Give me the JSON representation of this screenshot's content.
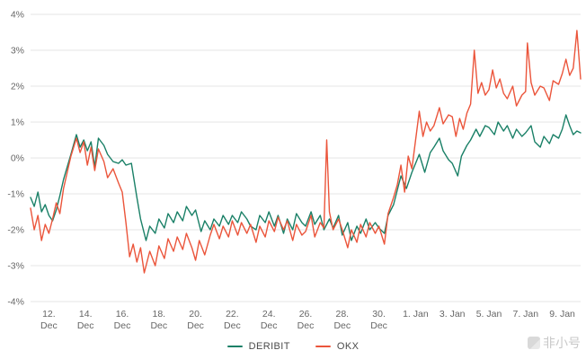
{
  "colors": {
    "background": "#ffffff",
    "grid": "#e6e6e6",
    "axis_text": "#666666",
    "deribit": "#1a8067",
    "okx": "#eb553b"
  },
  "legend": {
    "items": [
      {
        "label": "DERIBIT",
        "color": "#1a8067"
      },
      {
        "label": "OKX",
        "color": "#eb553b"
      }
    ]
  },
  "watermark": "非小号",
  "chart_data": {
    "type": "line",
    "title": "",
    "xlabel": "",
    "ylabel": "",
    "ylim": [
      -4,
      4
    ],
    "x_domain": [
      0,
      30
    ],
    "grid": "horizontal-only",
    "legend_position": "bottom-center",
    "y_ticks": [
      {
        "value": 4,
        "label": "4%"
      },
      {
        "value": 3,
        "label": "3%"
      },
      {
        "value": 2,
        "label": "2%"
      },
      {
        "value": 1,
        "label": "1%"
      },
      {
        "value": 0,
        "label": "0%"
      },
      {
        "value": -1,
        "label": "-1%"
      },
      {
        "value": -2,
        "label": "-2%"
      },
      {
        "value": -3,
        "label": "-3%"
      },
      {
        "value": -4,
        "label": "-4%"
      }
    ],
    "x_ticks": [
      {
        "pos": 1,
        "lines": [
          "12.",
          "Dec"
        ]
      },
      {
        "pos": 3,
        "lines": [
          "14.",
          "Dec"
        ]
      },
      {
        "pos": 5,
        "lines": [
          "16.",
          "Dec"
        ]
      },
      {
        "pos": 7,
        "lines": [
          "18.",
          "Dec"
        ]
      },
      {
        "pos": 9,
        "lines": [
          "20.",
          "Dec"
        ]
      },
      {
        "pos": 11,
        "lines": [
          "22.",
          "Dec"
        ]
      },
      {
        "pos": 13,
        "lines": [
          "24.",
          "Dec"
        ]
      },
      {
        "pos": 15,
        "lines": [
          "26.",
          "Dec"
        ]
      },
      {
        "pos": 17,
        "lines": [
          "28.",
          "Dec"
        ]
      },
      {
        "pos": 19,
        "lines": [
          "30.",
          "Dec"
        ]
      },
      {
        "pos": 21,
        "lines": [
          "1. Jan"
        ]
      },
      {
        "pos": 23,
        "lines": [
          "3. Jan"
        ]
      },
      {
        "pos": 25,
        "lines": [
          "5. Jan"
        ]
      },
      {
        "pos": 27,
        "lines": [
          "7. Jan"
        ]
      },
      {
        "pos": 29,
        "lines": [
          "9. Jan"
        ]
      }
    ],
    "series": [
      {
        "name": "DERIBIT",
        "color": "#1a8067",
        "points": [
          [
            0,
            -1.1
          ],
          [
            0.2,
            -1.35
          ],
          [
            0.4,
            -0.95
          ],
          [
            0.6,
            -1.5
          ],
          [
            0.8,
            -1.3
          ],
          [
            1,
            -1.6
          ],
          [
            1.2,
            -1.75
          ],
          [
            1.4,
            -1.45
          ],
          [
            1.6,
            -1.05
          ],
          [
            1.8,
            -0.6
          ],
          [
            2,
            -0.25
          ],
          [
            2.2,
            0.1
          ],
          [
            2.5,
            0.65
          ],
          [
            2.7,
            0.3
          ],
          [
            2.9,
            0.5
          ],
          [
            3.1,
            0.2
          ],
          [
            3.3,
            0.45
          ],
          [
            3.5,
            -0.25
          ],
          [
            3.7,
            0.55
          ],
          [
            4,
            0.35
          ],
          [
            4.2,
            0.1
          ],
          [
            4.5,
            -0.1
          ],
          [
            4.8,
            -0.15
          ],
          [
            5,
            -0.05
          ],
          [
            5.2,
            -0.2
          ],
          [
            5.5,
            -0.15
          ],
          [
            5.8,
            -1.1
          ],
          [
            6,
            -1.7
          ],
          [
            6.3,
            -2.3
          ],
          [
            6.5,
            -1.9
          ],
          [
            6.8,
            -2.1
          ],
          [
            7,
            -1.7
          ],
          [
            7.3,
            -1.95
          ],
          [
            7.5,
            -1.55
          ],
          [
            7.8,
            -1.8
          ],
          [
            8,
            -1.5
          ],
          [
            8.3,
            -1.75
          ],
          [
            8.5,
            -1.35
          ],
          [
            8.8,
            -1.6
          ],
          [
            9,
            -1.45
          ],
          [
            9.3,
            -2.05
          ],
          [
            9.5,
            -1.75
          ],
          [
            9.8,
            -2.0
          ],
          [
            10,
            -1.7
          ],
          [
            10.3,
            -1.9
          ],
          [
            10.5,
            -1.6
          ],
          [
            10.8,
            -1.85
          ],
          [
            11,
            -1.6
          ],
          [
            11.3,
            -1.8
          ],
          [
            11.5,
            -1.5
          ],
          [
            11.8,
            -1.7
          ],
          [
            12,
            -1.9
          ],
          [
            12.3,
            -2.0
          ],
          [
            12.5,
            -1.6
          ],
          [
            12.8,
            -1.8
          ],
          [
            13,
            -1.5
          ],
          [
            13.3,
            -1.9
          ],
          [
            13.5,
            -1.6
          ],
          [
            13.8,
            -2.1
          ],
          [
            14,
            -1.7
          ],
          [
            14.3,
            -2.0
          ],
          [
            14.5,
            -1.55
          ],
          [
            14.8,
            -1.8
          ],
          [
            15,
            -1.9
          ],
          [
            15.3,
            -1.5
          ],
          [
            15.5,
            -1.85
          ],
          [
            15.8,
            -1.6
          ],
          [
            16,
            -2.0
          ],
          [
            16.3,
            -1.7
          ],
          [
            16.5,
            -1.95
          ],
          [
            16.8,
            -1.6
          ],
          [
            17,
            -2.15
          ],
          [
            17.3,
            -1.8
          ],
          [
            17.5,
            -2.3
          ],
          [
            17.8,
            -1.9
          ],
          [
            18,
            -2.1
          ],
          [
            18.3,
            -1.7
          ],
          [
            18.5,
            -2.0
          ],
          [
            18.8,
            -1.8
          ],
          [
            19,
            -1.95
          ],
          [
            19.3,
            -2.1
          ],
          [
            19.5,
            -1.6
          ],
          [
            19.8,
            -1.3
          ],
          [
            20,
            -0.9
          ],
          [
            20.2,
            -0.5
          ],
          [
            20.5,
            -0.85
          ],
          [
            20.8,
            -0.4
          ],
          [
            21,
            -0.15
          ],
          [
            21.2,
            0.1
          ],
          [
            21.5,
            -0.4
          ],
          [
            21.8,
            0.15
          ],
          [
            22,
            0.3
          ],
          [
            22.3,
            0.55
          ],
          [
            22.5,
            0.2
          ],
          [
            22.8,
            -0.05
          ],
          [
            23,
            -0.15
          ],
          [
            23.3,
            -0.5
          ],
          [
            23.5,
            0.05
          ],
          [
            23.8,
            0.35
          ],
          [
            24,
            0.5
          ],
          [
            24.3,
            0.8
          ],
          [
            24.5,
            0.6
          ],
          [
            24.8,
            0.9
          ],
          [
            25,
            0.85
          ],
          [
            25.3,
            0.65
          ],
          [
            25.5,
            1.0
          ],
          [
            25.8,
            0.75
          ],
          [
            26,
            0.9
          ],
          [
            26.3,
            0.55
          ],
          [
            26.5,
            0.8
          ],
          [
            26.8,
            0.6
          ],
          [
            27,
            0.7
          ],
          [
            27.3,
            0.9
          ],
          [
            27.5,
            0.45
          ],
          [
            27.8,
            0.3
          ],
          [
            28,
            0.6
          ],
          [
            28.3,
            0.4
          ],
          [
            28.5,
            0.65
          ],
          [
            28.8,
            0.55
          ],
          [
            29,
            0.8
          ],
          [
            29.2,
            1.2
          ],
          [
            29.4,
            0.9
          ],
          [
            29.6,
            0.65
          ],
          [
            29.8,
            0.75
          ],
          [
            30,
            0.7
          ]
        ]
      },
      {
        "name": "OKX",
        "color": "#eb553b",
        "points": [
          [
            0,
            -1.4
          ],
          [
            0.2,
            -2.0
          ],
          [
            0.4,
            -1.6
          ],
          [
            0.6,
            -2.3
          ],
          [
            0.8,
            -1.85
          ],
          [
            1,
            -2.1
          ],
          [
            1.2,
            -1.7
          ],
          [
            1.4,
            -1.25
          ],
          [
            1.6,
            -1.55
          ],
          [
            1.8,
            -0.85
          ],
          [
            2,
            -0.4
          ],
          [
            2.2,
            0.05
          ],
          [
            2.5,
            0.55
          ],
          [
            2.7,
            0.15
          ],
          [
            2.9,
            0.45
          ],
          [
            3.1,
            -0.2
          ],
          [
            3.3,
            0.3
          ],
          [
            3.5,
            -0.35
          ],
          [
            3.7,
            0.25
          ],
          [
            4,
            -0.1
          ],
          [
            4.2,
            -0.55
          ],
          [
            4.5,
            -0.3
          ],
          [
            4.8,
            -0.7
          ],
          [
            5,
            -0.95
          ],
          [
            5.2,
            -1.8
          ],
          [
            5.4,
            -2.75
          ],
          [
            5.6,
            -2.4
          ],
          [
            5.8,
            -2.9
          ],
          [
            6,
            -2.5
          ],
          [
            6.2,
            -3.2
          ],
          [
            6.5,
            -2.6
          ],
          [
            6.8,
            -3.0
          ],
          [
            7,
            -2.45
          ],
          [
            7.3,
            -2.8
          ],
          [
            7.5,
            -2.25
          ],
          [
            7.8,
            -2.6
          ],
          [
            8,
            -2.2
          ],
          [
            8.3,
            -2.55
          ],
          [
            8.5,
            -2.1
          ],
          [
            8.8,
            -2.5
          ],
          [
            9,
            -2.85
          ],
          [
            9.2,
            -2.3
          ],
          [
            9.5,
            -2.7
          ],
          [
            9.8,
            -2.15
          ],
          [
            10,
            -1.85
          ],
          [
            10.3,
            -2.25
          ],
          [
            10.5,
            -1.9
          ],
          [
            10.8,
            -2.2
          ],
          [
            11,
            -1.75
          ],
          [
            11.3,
            -2.15
          ],
          [
            11.5,
            -1.8
          ],
          [
            11.8,
            -2.1
          ],
          [
            12,
            -1.85
          ],
          [
            12.3,
            -2.35
          ],
          [
            12.5,
            -1.9
          ],
          [
            12.8,
            -2.2
          ],
          [
            13,
            -1.75
          ],
          [
            13.3,
            -2.05
          ],
          [
            13.5,
            -1.65
          ],
          [
            13.8,
            -2.0
          ],
          [
            14,
            -1.75
          ],
          [
            14.3,
            -2.3
          ],
          [
            14.5,
            -1.85
          ],
          [
            14.8,
            -2.15
          ],
          [
            15,
            -2.05
          ],
          [
            15.3,
            -1.6
          ],
          [
            15.5,
            -2.2
          ],
          [
            15.8,
            -1.8
          ],
          [
            16,
            -1.95
          ],
          [
            16.15,
            0.5
          ],
          [
            16.3,
            -1.5
          ],
          [
            16.5,
            -2.0
          ],
          [
            16.8,
            -1.7
          ],
          [
            17,
            -2.0
          ],
          [
            17.3,
            -2.5
          ],
          [
            17.5,
            -2.0
          ],
          [
            17.8,
            -2.35
          ],
          [
            18,
            -1.85
          ],
          [
            18.3,
            -2.2
          ],
          [
            18.5,
            -1.8
          ],
          [
            18.8,
            -2.1
          ],
          [
            19,
            -1.9
          ],
          [
            19.3,
            -2.4
          ],
          [
            19.5,
            -1.55
          ],
          [
            19.8,
            -1.1
          ],
          [
            20,
            -0.75
          ],
          [
            20.2,
            -0.2
          ],
          [
            20.4,
            -0.95
          ],
          [
            20.6,
            0.05
          ],
          [
            20.8,
            -0.3
          ],
          [
            21,
            0.5
          ],
          [
            21.2,
            1.3
          ],
          [
            21.4,
            0.6
          ],
          [
            21.6,
            1.0
          ],
          [
            21.8,
            0.75
          ],
          [
            22,
            0.9
          ],
          [
            22.3,
            1.4
          ],
          [
            22.5,
            0.95
          ],
          [
            22.8,
            1.2
          ],
          [
            23,
            1.15
          ],
          [
            23.2,
            0.6
          ],
          [
            23.4,
            1.1
          ],
          [
            23.6,
            0.8
          ],
          [
            23.8,
            1.25
          ],
          [
            24,
            1.5
          ],
          [
            24.2,
            3.0
          ],
          [
            24.4,
            1.8
          ],
          [
            24.6,
            2.1
          ],
          [
            24.8,
            1.75
          ],
          [
            25,
            1.9
          ],
          [
            25.2,
            2.45
          ],
          [
            25.4,
            1.95
          ],
          [
            25.6,
            2.2
          ],
          [
            25.8,
            1.8
          ],
          [
            26,
            1.65
          ],
          [
            26.3,
            2.0
          ],
          [
            26.5,
            1.45
          ],
          [
            26.8,
            1.75
          ],
          [
            27,
            1.85
          ],
          [
            27.1,
            3.2
          ],
          [
            27.3,
            2.1
          ],
          [
            27.5,
            1.75
          ],
          [
            27.8,
            2.0
          ],
          [
            28,
            1.95
          ],
          [
            28.3,
            1.6
          ],
          [
            28.5,
            2.15
          ],
          [
            28.8,
            2.05
          ],
          [
            29,
            2.35
          ],
          [
            29.2,
            2.75
          ],
          [
            29.4,
            2.3
          ],
          [
            29.6,
            2.5
          ],
          [
            29.8,
            3.55
          ],
          [
            30,
            2.2
          ]
        ]
      }
    ]
  }
}
